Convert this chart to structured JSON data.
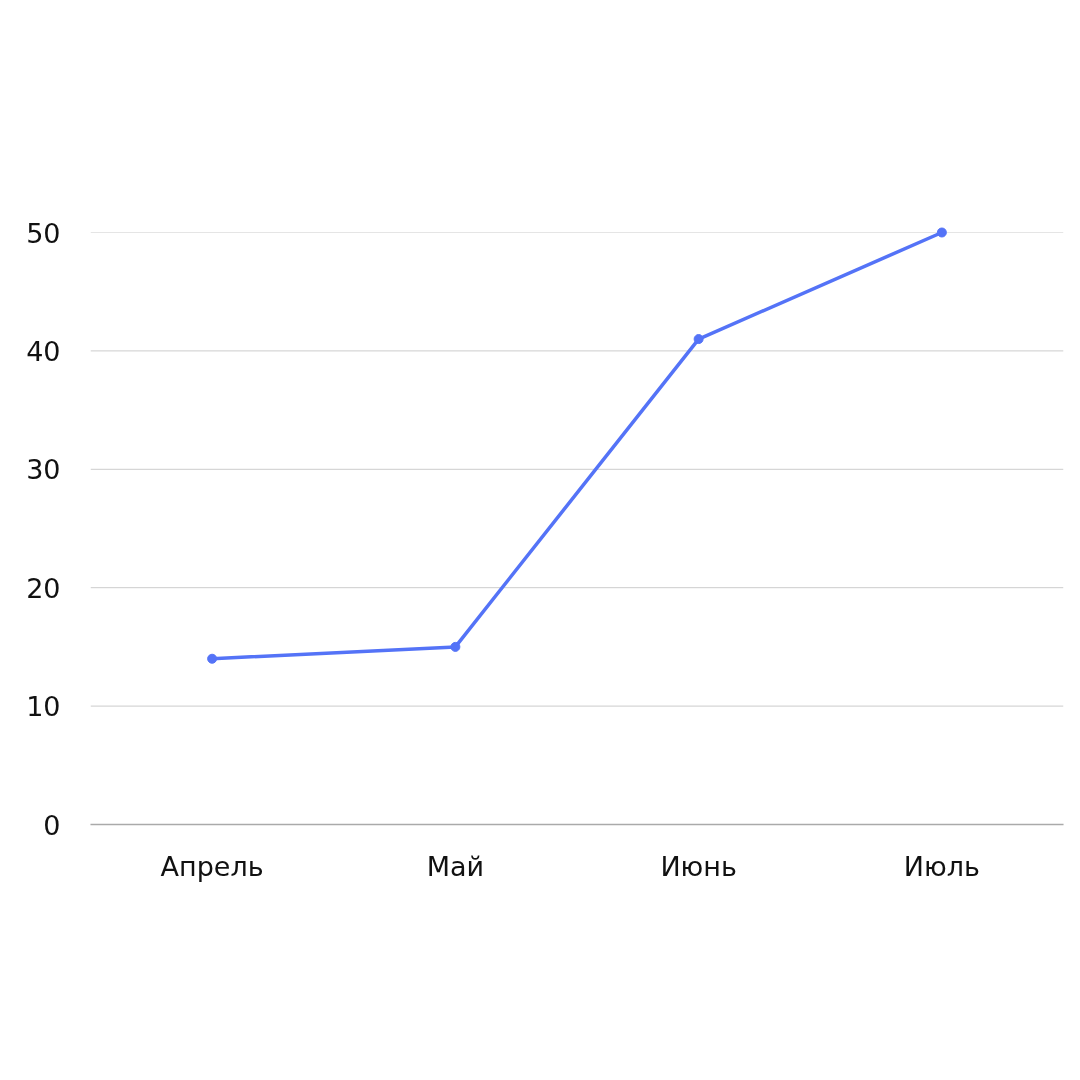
{
  "chart_data": {
    "type": "line",
    "categories": [
      "Апрель",
      "Май",
      "Июнь",
      "Июль"
    ],
    "series": [
      {
        "color": "#5473f7",
        "values": [
          14,
          15,
          41,
          50
        ]
      }
    ],
    "ylim": [
      0,
      50
    ],
    "yticks": [
      0,
      10,
      20,
      30,
      40,
      50
    ],
    "grid": "y",
    "marker": "circle",
    "line_style": "solid"
  }
}
